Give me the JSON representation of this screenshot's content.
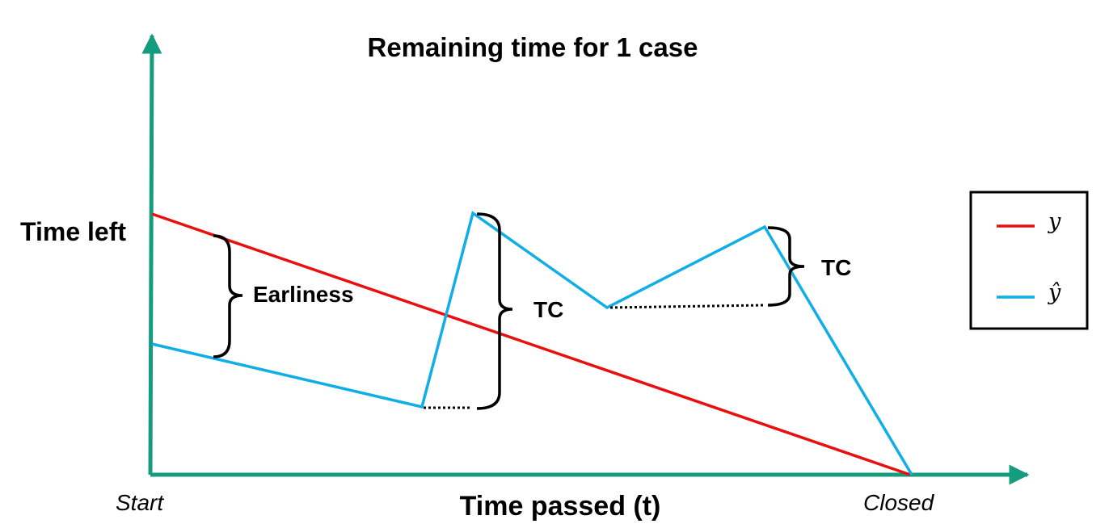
{
  "title": "Remaining time for 1 case",
  "axes": {
    "y_label": "Time left",
    "x_label": "Time passed (t)",
    "x_start_label": "Start",
    "x_end_label": "Closed"
  },
  "annotations": {
    "earliness": "Earliness",
    "tc_1": "TC",
    "tc_2": "TC"
  },
  "legend": {
    "actual": "y",
    "predicted": "ŷ"
  },
  "colors": {
    "axis": "#149c7e",
    "actual": "#e8100f",
    "predicted": "#10aee6",
    "annotation": "#000000"
  }
}
